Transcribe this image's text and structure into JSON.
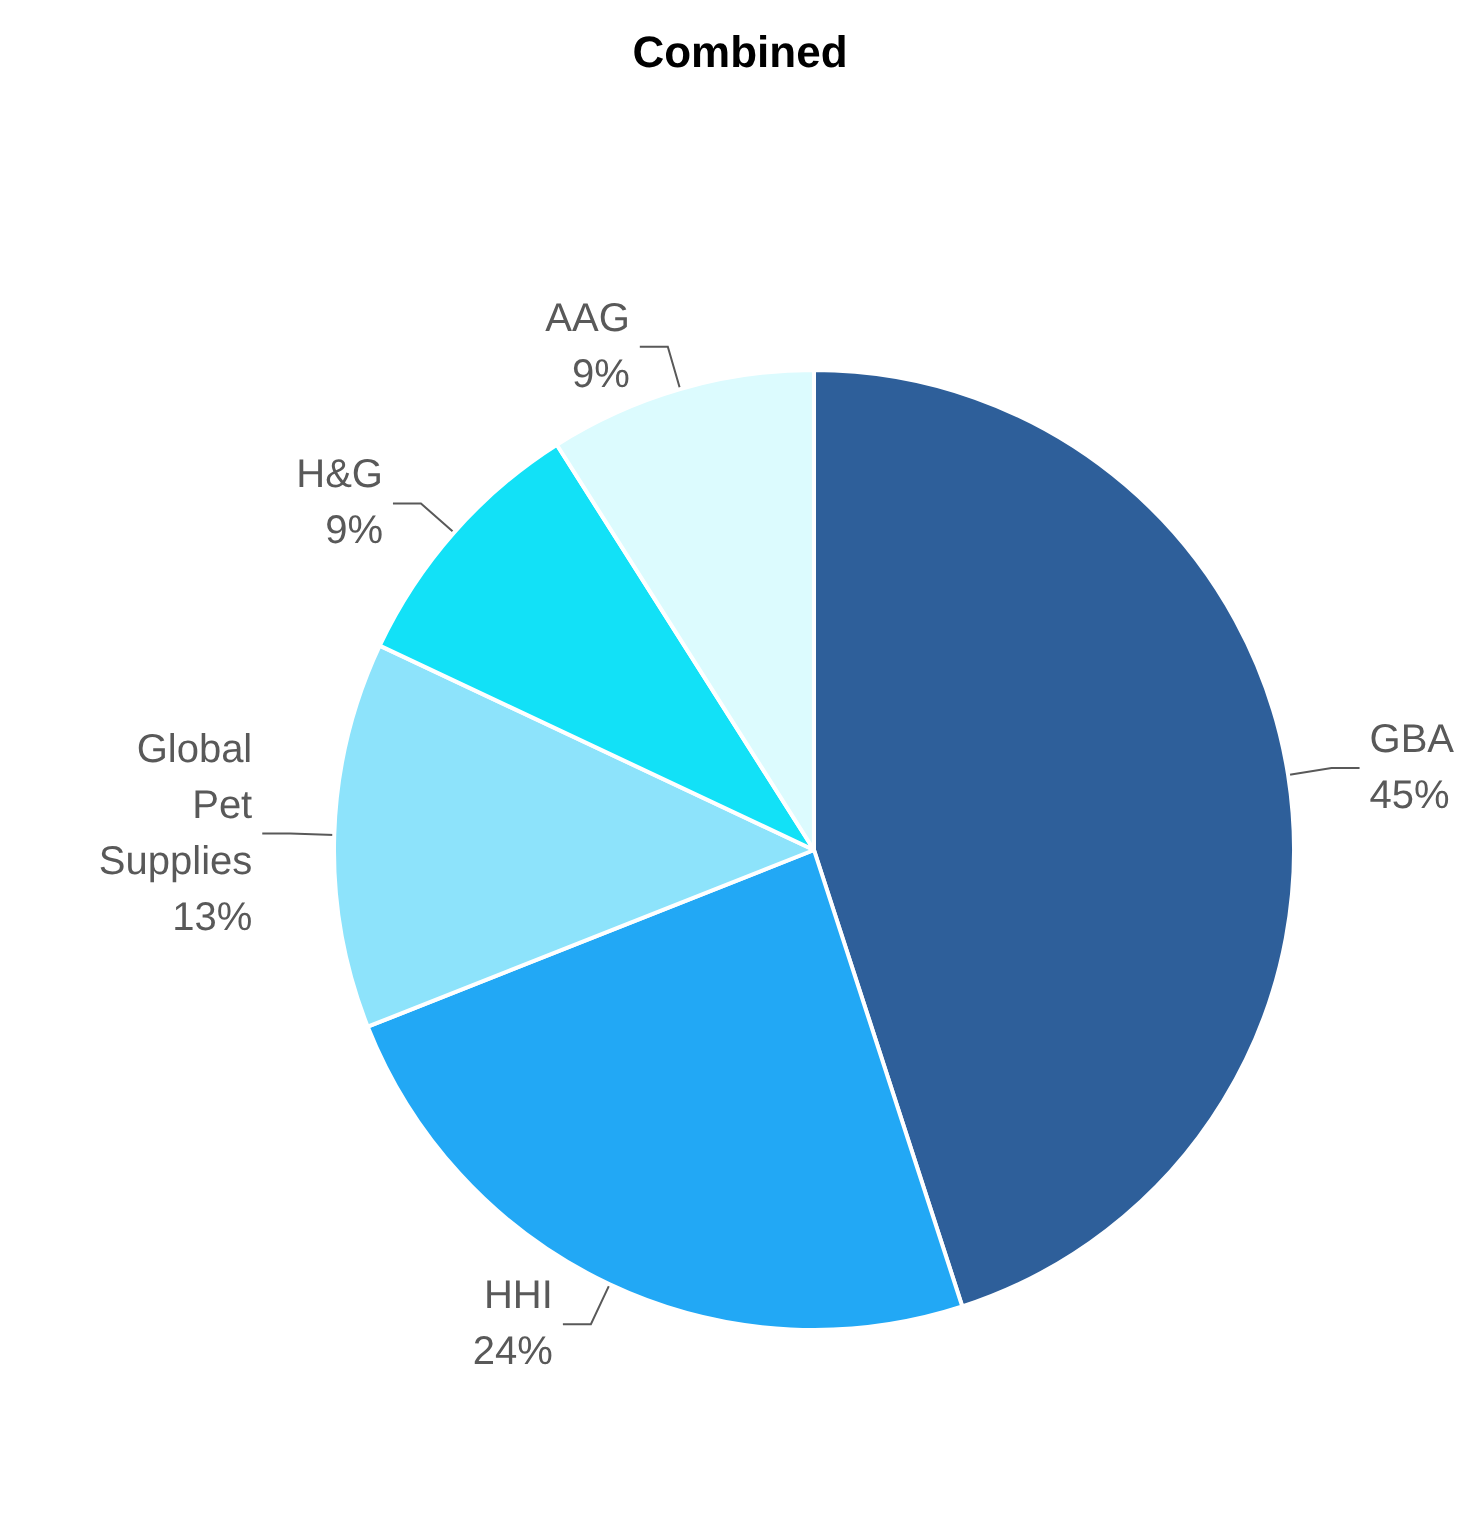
{
  "chart_data": {
    "type": "pie",
    "title": "Combined",
    "categories": [
      "GBA",
      "HHI",
      "Global\nPet\nSupplies",
      "H&G",
      "AAG"
    ],
    "values": [
      45,
      24,
      13,
      9,
      9
    ],
    "colors": [
      "#2e5f9a",
      "#22a8f5",
      "#8de3fb",
      "#12e1f7",
      "#dcfbfe"
    ],
    "value_labels": [
      "45%",
      "24%",
      "13%",
      "9%",
      "9%"
    ],
    "legend": false
  }
}
